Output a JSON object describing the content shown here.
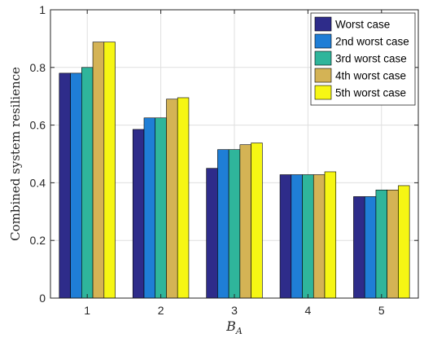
{
  "chart_data": {
    "type": "bar",
    "categories": [
      "1",
      "2",
      "3",
      "4",
      "5"
    ],
    "series": [
      {
        "name": "Worst case",
        "color": "#2e2c8a",
        "values": [
          0.78,
          0.585,
          0.45,
          0.428,
          0.352
        ]
      },
      {
        "name": "2nd worst case",
        "color": "#1f7ed6",
        "values": [
          0.78,
          0.625,
          0.515,
          0.428,
          0.352
        ]
      },
      {
        "name": "3rd worst case",
        "color": "#2fb59b",
        "values": [
          0.8,
          0.625,
          0.515,
          0.428,
          0.375
        ]
      },
      {
        "name": "4th worst case",
        "color": "#d4b355",
        "values": [
          0.888,
          0.69,
          0.532,
          0.428,
          0.375
        ]
      },
      {
        "name": "5th worst case",
        "color": "#f6f614",
        "values": [
          0.888,
          0.695,
          0.538,
          0.438,
          0.39
        ]
      }
    ],
    "xlabel": "B",
    "xlabel_subscript": "A",
    "ylabel": "Combined system resilience",
    "ylim": [
      0,
      1
    ],
    "yticks": [
      "0",
      "0.2",
      "0.4",
      "0.6",
      "0.8",
      "1"
    ],
    "ytick_values": [
      0,
      0.2,
      0.4,
      0.6,
      0.8,
      1
    ],
    "grid": true,
    "legend_position": "top-right"
  }
}
